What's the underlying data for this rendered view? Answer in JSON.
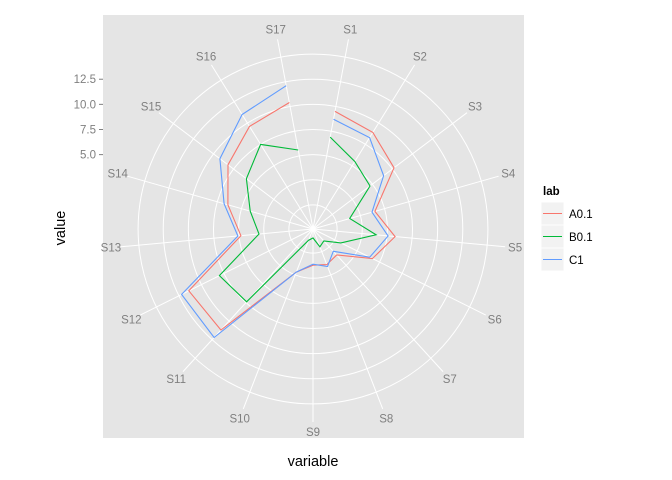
{
  "chart_data": {
    "type": "line",
    "coord": "polar",
    "xlabel": "variable",
    "ylabel": "value",
    "categories": [
      "S1",
      "S2",
      "S3",
      "S4",
      "S5",
      "S6",
      "S7",
      "S8",
      "S9",
      "S10",
      "S11",
      "S12",
      "S13",
      "S14",
      "S15",
      "S16",
      "S17"
    ],
    "y_ticks": [
      5.0,
      7.5,
      10.0,
      12.5
    ],
    "y_tick_labels": [
      "5.0",
      "7.5",
      "10.0",
      "12.5"
    ],
    "ylim": [
      -2.4,
      16.8
    ],
    "grid": true,
    "background": "#e5e5e5",
    "legend": {
      "title": "lab",
      "position": "right"
    },
    "series": [
      {
        "name": "A0.1",
        "color": "#f8766d",
        "values": [
          9.5,
          8.9,
          7.7,
          4.0,
          5.8,
          4.2,
          1.1,
          1.4,
          1.2,
          2.2,
          11.2,
          11.4,
          4.8,
          6.4,
          8.2,
          9.6,
          10.4
        ]
      },
      {
        "name": "B0.1",
        "color": "#00ba38",
        "values": [
          6.9,
          5.5,
          4.7,
          1.4,
          3.9,
          0.7,
          -0.8,
          -0.5,
          -1.5,
          -1.2,
          7.4,
          8.0,
          3.0,
          4.1,
          5.9,
          7.5,
          5.6
        ]
      },
      {
        "name": "C1",
        "color": "#619cff",
        "values": [
          8.7,
          8.3,
          6.4,
          3.7,
          5.1,
          3.9,
          0.6,
          1.6,
          1.1,
          2.2,
          12.2,
          12.2,
          5.1,
          6.8,
          9.2,
          11.0,
          12.1
        ]
      }
    ]
  }
}
